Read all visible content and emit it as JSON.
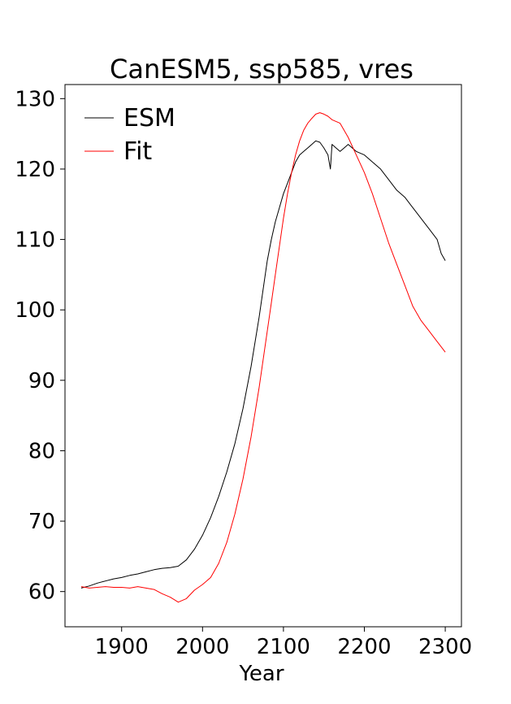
{
  "chart_data": {
    "type": "line",
    "title": "CanESM5, ssp585, vres",
    "xlabel": "Year",
    "ylabel": "",
    "xlim": [
      1830,
      2320
    ],
    "ylim": [
      55,
      132
    ],
    "x_ticks": [
      1900,
      2000,
      2100,
      2200,
      2300
    ],
    "y_ticks": [
      60,
      70,
      80,
      90,
      100,
      110,
      120,
      130
    ],
    "grid": false,
    "legend_position": "top-left",
    "series": [
      {
        "name": "ESM",
        "color": "#000000",
        "x": [
          1850,
          1860,
          1870,
          1880,
          1890,
          1900,
          1910,
          1920,
          1930,
          1940,
          1950,
          1960,
          1970,
          1980,
          1990,
          2000,
          2010,
          2020,
          2030,
          2040,
          2050,
          2060,
          2070,
          2075,
          2080,
          2085,
          2090,
          2095,
          2100,
          2105,
          2110,
          2115,
          2120,
          2125,
          2130,
          2135,
          2140,
          2145,
          2150,
          2155,
          2158,
          2160,
          2165,
          2170,
          2175,
          2180,
          2185,
          2190,
          2200,
          2210,
          2220,
          2230,
          2240,
          2250,
          2260,
          2270,
          2280,
          2290,
          2295,
          2300
        ],
        "y": [
          60.5,
          60.8,
          61.2,
          61.5,
          61.8,
          62.0,
          62.3,
          62.5,
          62.8,
          63.1,
          63.3,
          63.4,
          63.6,
          64.5,
          66.0,
          68.0,
          70.5,
          73.5,
          77.0,
          81.0,
          86.0,
          92.0,
          99.0,
          103.0,
          107.0,
          110.0,
          112.5,
          114.5,
          116.5,
          118.0,
          119.5,
          121.0,
          122.0,
          122.5,
          123.0,
          123.5,
          124.0,
          123.8,
          123.0,
          122.0,
          120.0,
          123.5,
          123.0,
          122.5,
          123.0,
          123.5,
          123.0,
          122.5,
          122.0,
          121.0,
          120.0,
          118.5,
          117.0,
          116.0,
          114.5,
          113.0,
          111.5,
          110.0,
          108.0,
          107.0
        ]
      },
      {
        "name": "Fit",
        "color": "#ff0000",
        "x": [
          1850,
          1860,
          1870,
          1880,
          1890,
          1900,
          1910,
          1920,
          1930,
          1940,
          1950,
          1960,
          1970,
          1980,
          1990,
          2000,
          2010,
          2020,
          2030,
          2040,
          2050,
          2060,
          2070,
          2075,
          2080,
          2085,
          2090,
          2095,
          2100,
          2105,
          2110,
          2115,
          2120,
          2125,
          2130,
          2135,
          2140,
          2145,
          2150,
          2155,
          2160,
          2170,
          2180,
          2190,
          2200,
          2210,
          2220,
          2230,
          2240,
          2250,
          2260,
          2270,
          2280,
          2290,
          2300
        ],
        "y": [
          60.7,
          60.5,
          60.6,
          60.7,
          60.6,
          60.6,
          60.5,
          60.7,
          60.5,
          60.3,
          59.7,
          59.2,
          58.5,
          59.0,
          60.2,
          61.0,
          62.0,
          64.0,
          67.0,
          71.0,
          76.0,
          82.0,
          89.0,
          93.0,
          97.0,
          101.0,
          105.0,
          109.0,
          113.0,
          116.5,
          119.5,
          122.0,
          124.0,
          125.5,
          126.5,
          127.2,
          127.8,
          128.0,
          127.8,
          127.5,
          127.0,
          126.5,
          124.5,
          122.0,
          119.5,
          116.5,
          113.0,
          109.5,
          106.5,
          103.5,
          100.5,
          98.5,
          97.0,
          95.5,
          94.0
        ]
      }
    ]
  }
}
